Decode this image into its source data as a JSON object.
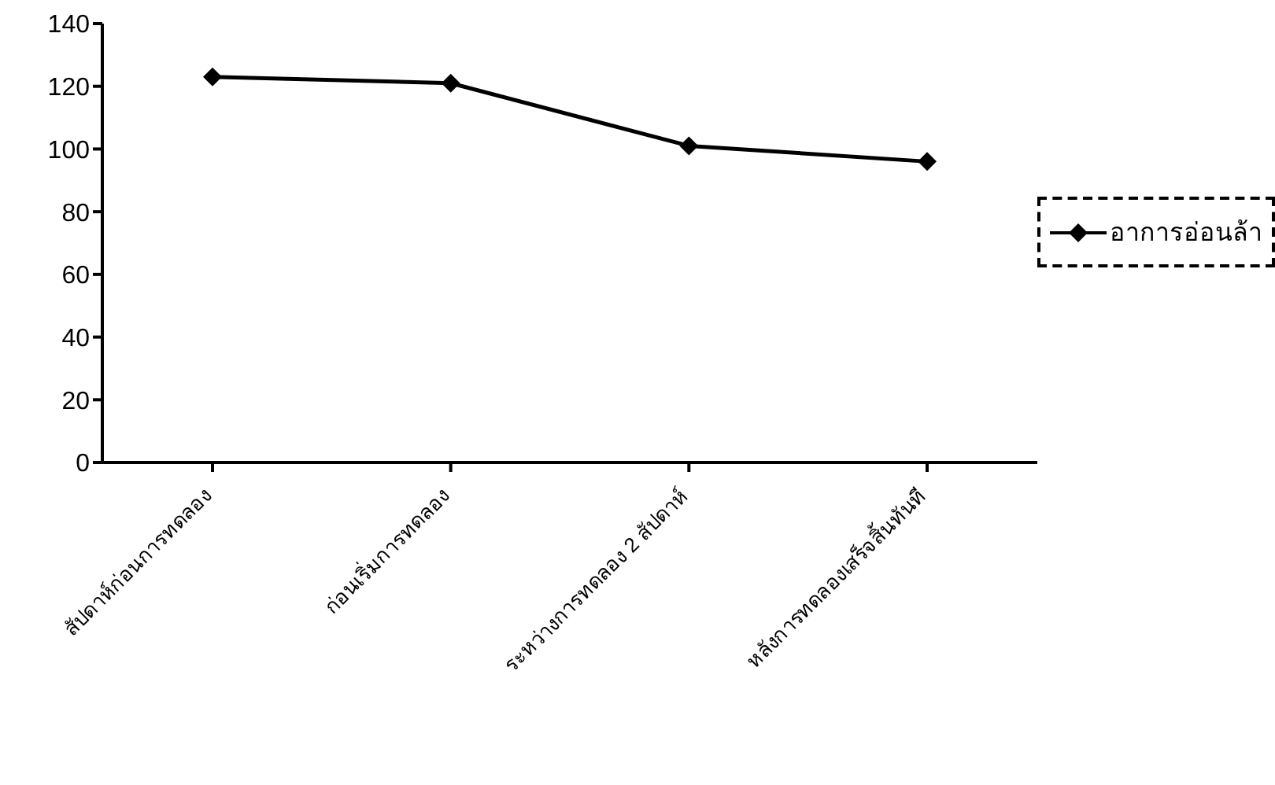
{
  "chart_data": {
    "type": "line",
    "categories": [
      "สัปดาห์ก่อนการทดลอง",
      "ก่อนเริ่มการทดลอง",
      "ระหว่างการทดลอง 2 สัปดาห์",
      "หลังการทดลองเสร็จสิ้นทันที"
    ],
    "series": [
      {
        "name": "อาการอ่อนล้า",
        "color": "#000000",
        "values": [
          123,
          121,
          101,
          96
        ]
      }
    ],
    "ylim": [
      0,
      140
    ],
    "yticks": [
      0,
      20,
      40,
      60,
      80,
      100,
      120,
      140
    ],
    "legend": "right",
    "marker": "diamond",
    "line_style": "solid"
  }
}
